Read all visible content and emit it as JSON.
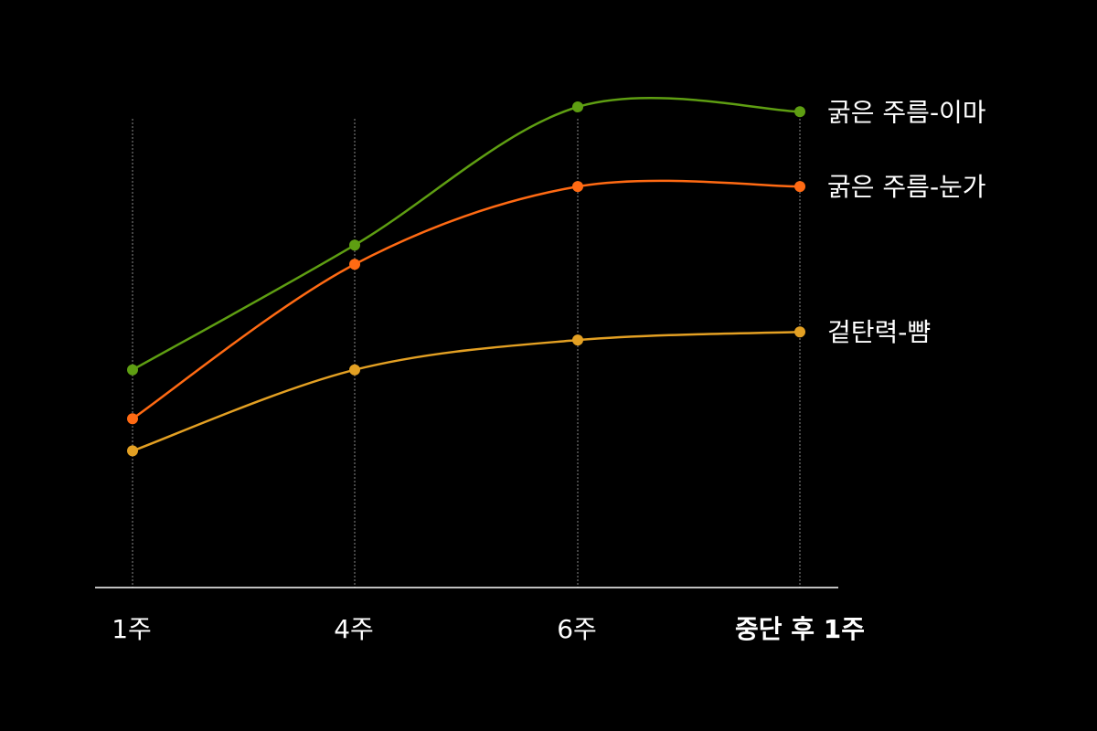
{
  "chart_data": {
    "type": "line",
    "title": "",
    "xlabel": "",
    "ylabel": "",
    "categories": [
      "1주",
      "4주",
      "6주",
      "중단 후 1주"
    ],
    "highlight_category_index": 3,
    "highlight_color": "#ff6a13",
    "ylim": [
      0,
      100
    ],
    "grid": {
      "vertical": true,
      "horizontal": false
    },
    "legend": "inline-right",
    "series": [
      {
        "name": "굵은 주름-이마",
        "color": "#5e9e12",
        "values": [
          45.2,
          71.2,
          100,
          99.0
        ]
      },
      {
        "name": "굵은 주름-눈가",
        "color": "#ff6a13",
        "values": [
          35.0,
          67.2,
          83.4,
          83.4
        ]
      },
      {
        "name": "겉탄력-뺨",
        "color": "#e3a023",
        "values": [
          28.3,
          45.2,
          51.4,
          53.1
        ]
      }
    ]
  }
}
